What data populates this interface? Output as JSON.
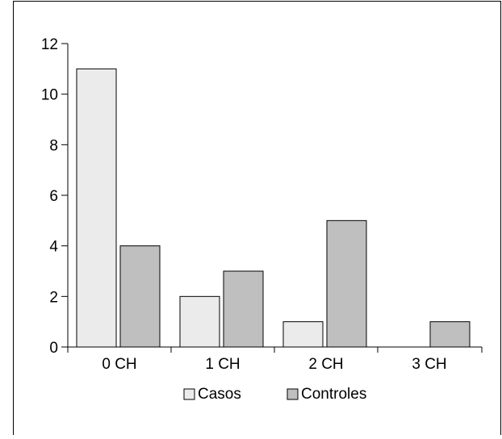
{
  "chart_data": {
    "type": "bar",
    "categories": [
      "0 CH",
      "1 CH",
      "2 CH",
      "3 CH"
    ],
    "series": [
      {
        "name": "Casos",
        "values": [
          11,
          2,
          1,
          0
        ],
        "color": "#ebebeb"
      },
      {
        "name": "Controles",
        "values": [
          4,
          3,
          5,
          1
        ],
        "color": "#bfbfbf"
      }
    ],
    "yticks": [
      0,
      2,
      4,
      6,
      8,
      10,
      12
    ],
    "ylim": [
      0,
      12
    ],
    "grid": false,
    "legend_position": "bottom-center"
  }
}
